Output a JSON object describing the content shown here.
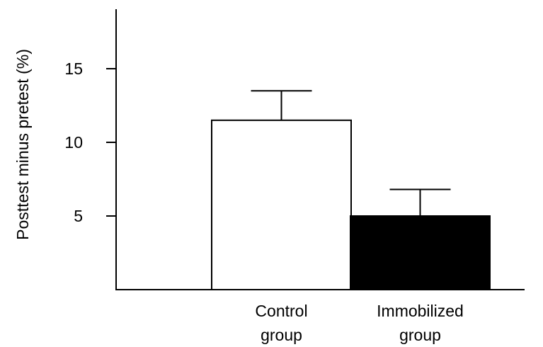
{
  "chart_data": {
    "type": "bar",
    "title": "",
    "xlabel": "",
    "ylabel": "Posttest minus pretest (%)",
    "categories": [
      [
        "Control",
        "group"
      ],
      [
        "Immobilized",
        "group"
      ]
    ],
    "values": [
      11.5,
      5.0
    ],
    "errors": [
      2.0,
      1.8
    ],
    "ylim": [
      0,
      20
    ],
    "yticks": [
      5,
      10,
      15
    ],
    "ytick_labels": [
      "5",
      "10",
      "15"
    ],
    "colors": {
      "bar_fills": [
        "#ffffff",
        "#000000"
      ],
      "stroke": "#000000"
    },
    "grid": false,
    "legend": "none",
    "error_bars": "upper"
  }
}
